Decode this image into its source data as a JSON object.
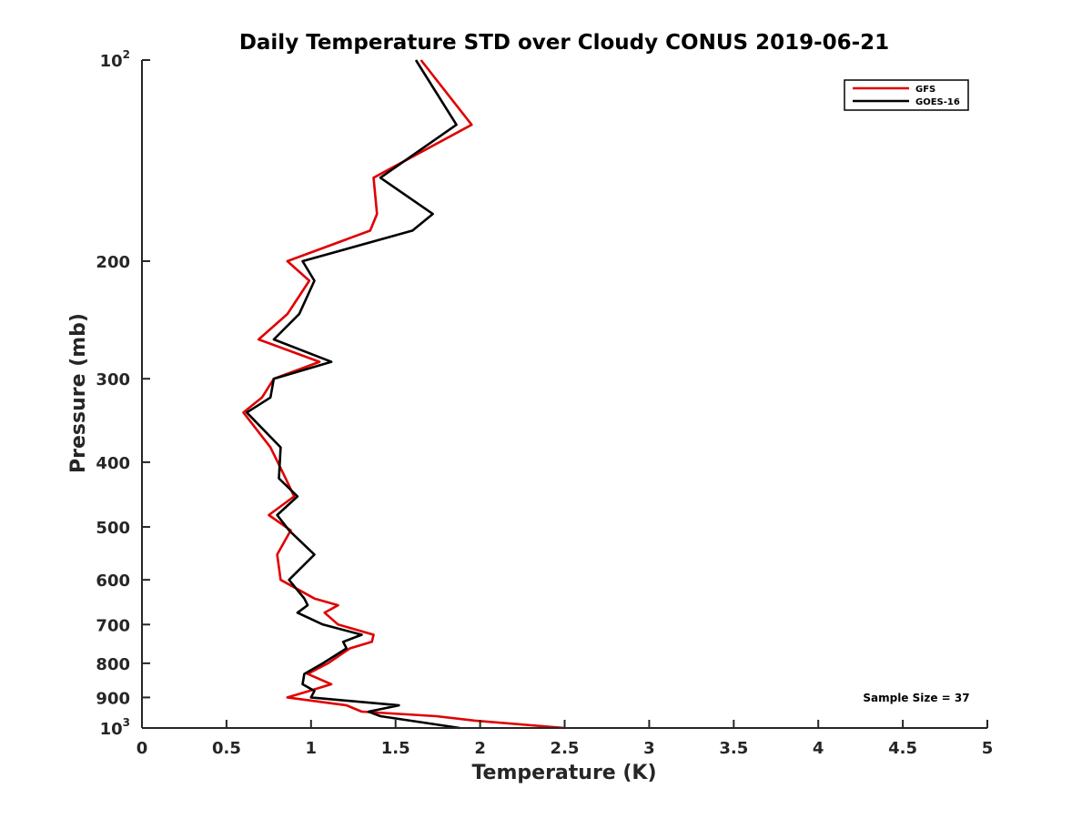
{
  "chart_data": {
    "type": "line",
    "title": "Daily Temperature STD over Cloudy CONUS 2019-06-21",
    "xlabel": "Temperature (K)",
    "ylabel": "Pressure (mb)",
    "xlim": [
      0,
      5
    ],
    "ylim": [
      100,
      1000
    ],
    "y_scale": "log",
    "y_reversed": true,
    "x_ticks": [
      0,
      0.5,
      1,
      1.5,
      2,
      2.5,
      3,
      3.5,
      4,
      4.5,
      5
    ],
    "x_tick_labels": [
      "0",
      "0.5",
      "1",
      "1.5",
      "2",
      "2.5",
      "3",
      "3.5",
      "4",
      "4.5",
      "5"
    ],
    "y_ticks": [
      100,
      200,
      300,
      400,
      500,
      600,
      700,
      800,
      900,
      1000
    ],
    "y_tick_labels": [
      {
        "base": "10",
        "exp": "2"
      },
      {
        "base": "200"
      },
      {
        "base": "300"
      },
      {
        "base": "400"
      },
      {
        "base": "500"
      },
      {
        "base": "600"
      },
      {
        "base": "700"
      },
      {
        "base": "800"
      },
      {
        "base": "900"
      },
      {
        "base": "10",
        "exp": "3"
      }
    ],
    "legend_position": "top-right",
    "annotation": "Sample Size = 37",
    "series": [
      {
        "name": "GFS",
        "color": "#e00000",
        "points": [
          [
            1.65,
            100
          ],
          [
            1.95,
            125
          ],
          [
            1.37,
            150
          ],
          [
            1.39,
            170
          ],
          [
            1.35,
            180
          ],
          [
            0.86,
            200
          ],
          [
            0.99,
            214
          ],
          [
            0.86,
            240
          ],
          [
            0.69,
            262
          ],
          [
            1.05,
            283
          ],
          [
            0.78,
            300
          ],
          [
            0.71,
            320
          ],
          [
            0.6,
            337
          ],
          [
            0.76,
            380
          ],
          [
            0.85,
            423
          ],
          [
            0.9,
            450
          ],
          [
            0.75,
            480
          ],
          [
            0.88,
            506
          ],
          [
            0.8,
            550
          ],
          [
            0.82,
            600
          ],
          [
            1.02,
            640
          ],
          [
            1.16,
            655
          ],
          [
            1.08,
            672
          ],
          [
            1.16,
            700
          ],
          [
            1.37,
            725
          ],
          [
            1.36,
            743
          ],
          [
            1.23,
            760
          ],
          [
            1.1,
            800
          ],
          [
            0.98,
            830
          ],
          [
            1.12,
            860
          ],
          [
            0.99,
            880
          ],
          [
            0.86,
            900
          ],
          [
            1.21,
            925
          ],
          [
            1.3,
            945
          ],
          [
            1.74,
            960
          ],
          [
            1.97,
            975
          ],
          [
            2.5,
            1000
          ]
        ]
      },
      {
        "name": "GOES-16",
        "color": "#000000",
        "points": [
          [
            1.62,
            100
          ],
          [
            1.86,
            125
          ],
          [
            1.41,
            150
          ],
          [
            1.72,
            170
          ],
          [
            1.6,
            180
          ],
          [
            0.95,
            200
          ],
          [
            1.02,
            214
          ],
          [
            0.93,
            240
          ],
          [
            0.78,
            262
          ],
          [
            1.12,
            283
          ],
          [
            0.78,
            300
          ],
          [
            0.76,
            320
          ],
          [
            0.62,
            337
          ],
          [
            0.82,
            380
          ],
          [
            0.81,
            423
          ],
          [
            0.92,
            450
          ],
          [
            0.8,
            480
          ],
          [
            0.87,
            506
          ],
          [
            1.02,
            550
          ],
          [
            0.87,
            600
          ],
          [
            0.96,
            640
          ],
          [
            0.98,
            655
          ],
          [
            0.92,
            672
          ],
          [
            1.07,
            700
          ],
          [
            1.3,
            725
          ],
          [
            1.19,
            743
          ],
          [
            1.21,
            760
          ],
          [
            1.07,
            800
          ],
          [
            0.96,
            830
          ],
          [
            0.95,
            860
          ],
          [
            1.02,
            880
          ],
          [
            1.0,
            900
          ],
          [
            1.52,
            925
          ],
          [
            1.34,
            945
          ],
          [
            1.41,
            960
          ],
          [
            1.88,
            1000
          ]
        ]
      }
    ]
  }
}
